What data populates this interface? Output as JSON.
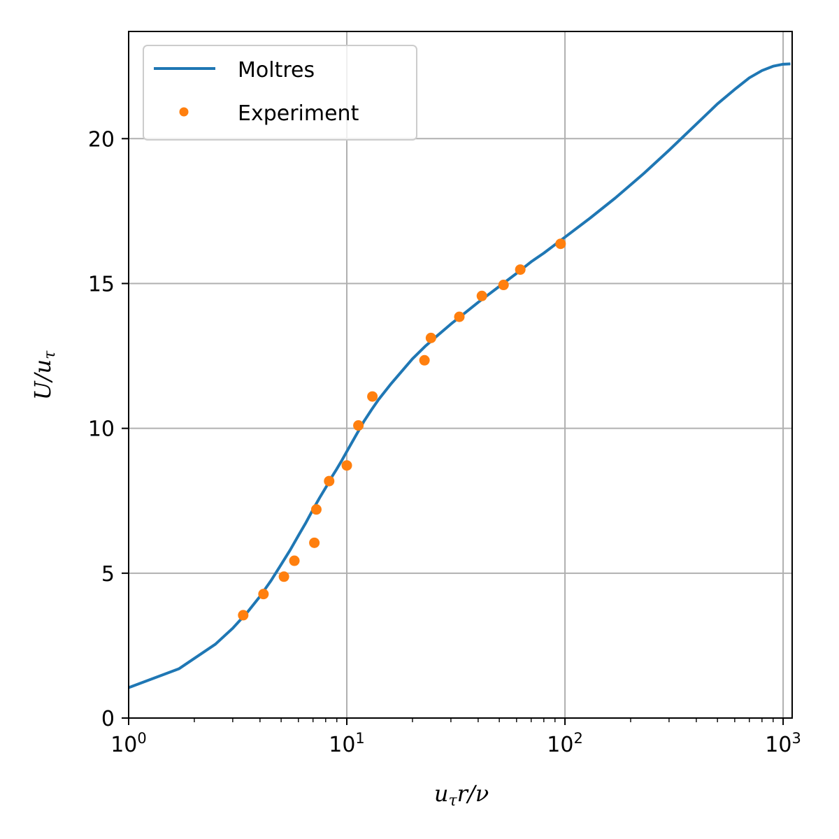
{
  "chart_data": {
    "type": "line",
    "xscale": "log",
    "xlim": [
      1,
      1100
    ],
    "ylim": [
      0,
      23.7
    ],
    "grid": true,
    "legend_position": "top-left",
    "xlabel_parts": {
      "u": "u",
      "tau": "τ",
      "rest": "r/ν"
    },
    "ylabel_parts": {
      "U": "U/",
      "u": "u",
      "tau": "τ"
    },
    "x_ticks": [
      {
        "value": 1,
        "base": "10",
        "exp": "0"
      },
      {
        "value": 10,
        "base": "10",
        "exp": "1"
      },
      {
        "value": 100,
        "base": "10",
        "exp": "2"
      },
      {
        "value": 1000,
        "base": "10",
        "exp": "3"
      }
    ],
    "y_ticks": [
      {
        "value": 0,
        "label": "0"
      },
      {
        "value": 5,
        "label": "5"
      },
      {
        "value": 10,
        "label": "10"
      },
      {
        "value": 15,
        "label": "15"
      },
      {
        "value": 20,
        "label": "20"
      }
    ],
    "series": [
      {
        "name": "Moltres",
        "kind": "line",
        "color": "#1f77b4",
        "points": [
          [
            1.0,
            1.05
          ],
          [
            1.7,
            1.7
          ],
          [
            2.5,
            2.55
          ],
          [
            3.0,
            3.1
          ],
          [
            3.5,
            3.65
          ],
          [
            4.0,
            4.2
          ],
          [
            4.5,
            4.75
          ],
          [
            5.0,
            5.3
          ],
          [
            5.5,
            5.8
          ],
          [
            6.0,
            6.3
          ],
          [
            6.5,
            6.75
          ],
          [
            7.0,
            7.2
          ],
          [
            7.5,
            7.6
          ],
          [
            8.0,
            7.95
          ],
          [
            8.5,
            8.3
          ],
          [
            9.0,
            8.6
          ],
          [
            9.5,
            8.9
          ],
          [
            10.0,
            9.2
          ],
          [
            11.0,
            9.75
          ],
          [
            12.0,
            10.25
          ],
          [
            13.0,
            10.65
          ],
          [
            14.0,
            11.0
          ],
          [
            16.0,
            11.55
          ],
          [
            18.0,
            12.0
          ],
          [
            20.0,
            12.4
          ],
          [
            23.0,
            12.85
          ],
          [
            26.0,
            13.2
          ],
          [
            30.0,
            13.6
          ],
          [
            35.0,
            14.0
          ],
          [
            40.0,
            14.35
          ],
          [
            50.0,
            14.9
          ],
          [
            60.0,
            15.35
          ],
          [
            70.0,
            15.75
          ],
          [
            80.0,
            16.05
          ],
          [
            100.0,
            16.6
          ],
          [
            130.0,
            17.25
          ],
          [
            170.0,
            17.95
          ],
          [
            230.0,
            18.8
          ],
          [
            300.0,
            19.6
          ],
          [
            400.0,
            20.5
          ],
          [
            500.0,
            21.2
          ],
          [
            600.0,
            21.7
          ],
          [
            700.0,
            22.1
          ],
          [
            800.0,
            22.35
          ],
          [
            900.0,
            22.5
          ],
          [
            1000.0,
            22.57
          ],
          [
            1080.0,
            22.58
          ]
        ]
      },
      {
        "name": "Experiment",
        "kind": "scatter",
        "color": "#ff7f0e",
        "points": [
          [
            3.35,
            3.55
          ],
          [
            4.15,
            4.28
          ],
          [
            5.15,
            4.88
          ],
          [
            5.75,
            5.43
          ],
          [
            7.1,
            6.05
          ],
          [
            7.25,
            7.2
          ],
          [
            8.3,
            8.18
          ],
          [
            10.0,
            8.72
          ],
          [
            11.3,
            10.1
          ],
          [
            13.1,
            11.1
          ],
          [
            22.7,
            12.35
          ],
          [
            24.3,
            13.12
          ],
          [
            32.8,
            13.85
          ],
          [
            41.6,
            14.57
          ],
          [
            52.3,
            14.95
          ],
          [
            62.4,
            15.48
          ],
          [
            95.5,
            16.37
          ]
        ]
      }
    ]
  }
}
